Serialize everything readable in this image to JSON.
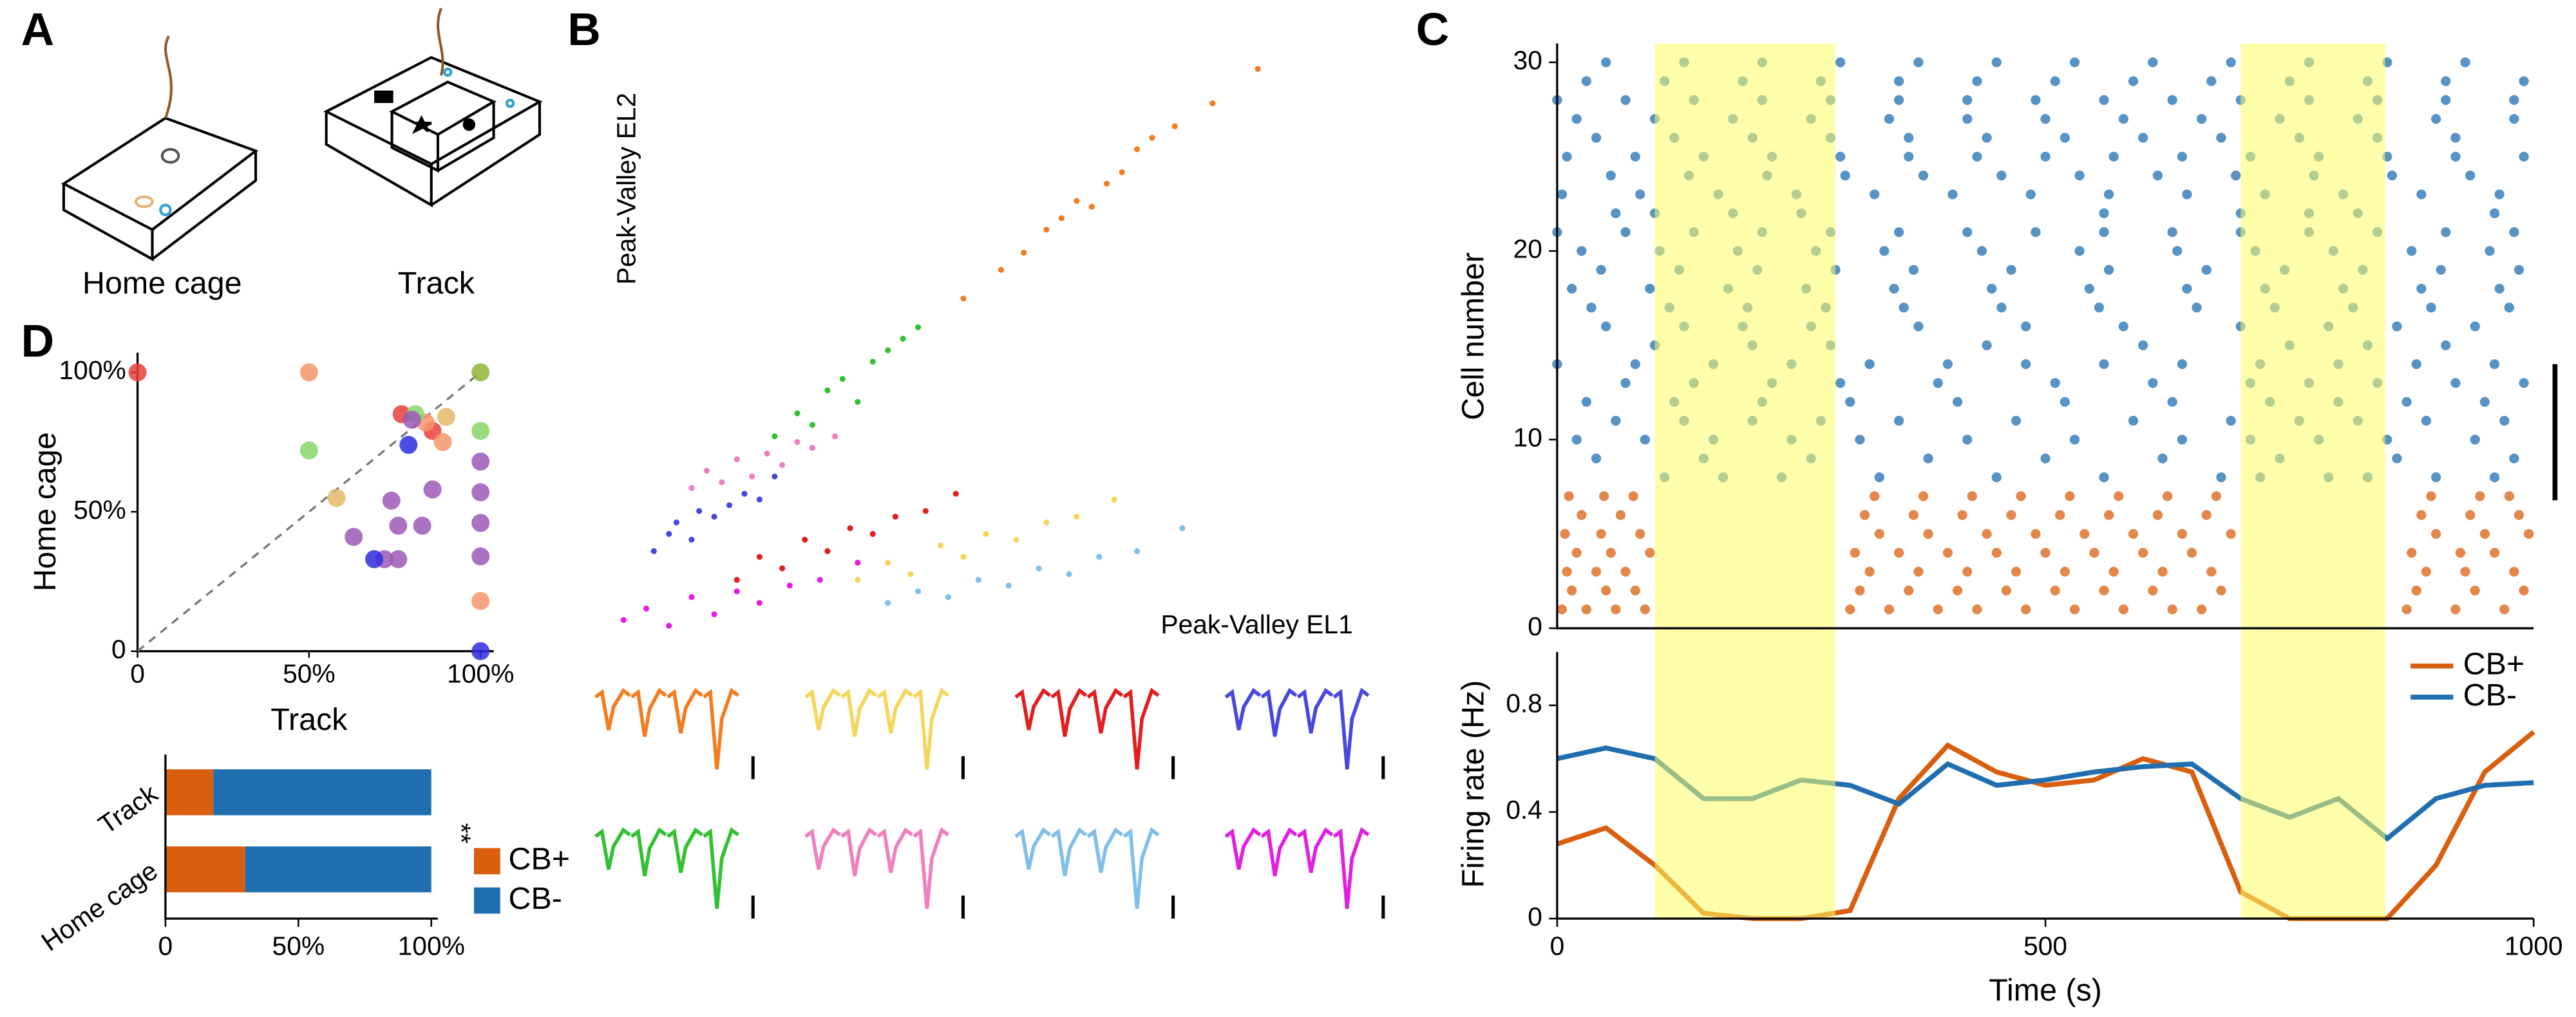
{
  "panel_labels": [
    "A",
    "B",
    "C",
    "D"
  ],
  "panel_a": {
    "labels": [
      "Home cage",
      "Track"
    ]
  },
  "chart_data": [
    {
      "type": "scatter",
      "xlabel": "Peak-Valley EL1",
      "ylabel": "Peak-Valley EL2",
      "xlim": [
        0,
        100
      ],
      "ylim": [
        0,
        100
      ],
      "series": [
        {
          "color": "#f47c20",
          "x": [
            47,
            52,
            55,
            58,
            60,
            62,
            64,
            66,
            68,
            70,
            72,
            75,
            80,
            86
          ],
          "values": [
            58,
            63,
            66,
            70,
            72,
            75,
            74,
            78,
            80,
            84,
            86,
            88,
            92,
            98
          ]
        },
        {
          "color": "#33c033",
          "x": [
            22,
            25,
            27,
            29,
            31,
            33,
            35,
            37,
            39,
            41
          ],
          "values": [
            34,
            38,
            36,
            42,
            44,
            40,
            47,
            49,
            51,
            53
          ]
        },
        {
          "color": "#f07fbf",
          "x": [
            11,
            13,
            15,
            17,
            19,
            21,
            23,
            25,
            27,
            30
          ],
          "values": [
            25,
            28,
            26,
            30,
            27,
            31,
            29,
            33,
            32,
            34
          ]
        },
        {
          "color": "#4848dd",
          "x": [
            6,
            8,
            9,
            11,
            12,
            14,
            16,
            18,
            20,
            22
          ],
          "values": [
            14,
            17,
            19,
            16,
            21,
            20,
            22,
            24,
            23,
            27
          ]
        },
        {
          "color": "#e02020",
          "x": [
            17,
            20,
            23,
            26,
            29,
            32,
            35,
            38,
            42,
            46
          ],
          "values": [
            9,
            13,
            11,
            16,
            14,
            18,
            17,
            20,
            21,
            24
          ]
        },
        {
          "color": "#f5d55a",
          "x": [
            33,
            37,
            40,
            44,
            47,
            50,
            54,
            58,
            62,
            67
          ],
          "values": [
            9,
            12,
            10,
            15,
            13,
            17,
            16,
            19,
            20,
            23
          ]
        },
        {
          "color": "#7fbfea",
          "x": [
            37,
            41,
            45,
            49,
            53,
            57,
            61,
            65,
            70,
            76
          ],
          "values": [
            5,
            7,
            6,
            9,
            8,
            11,
            10,
            13,
            14,
            18
          ]
        },
        {
          "color": "#e020e0",
          "x": [
            2,
            5,
            8,
            11,
            14,
            17,
            20,
            24,
            28,
            33
          ],
          "values": [
            2,
            4,
            1,
            6,
            3,
            7,
            5,
            8,
            9,
            12
          ]
        }
      ]
    },
    {
      "type": "raster",
      "ylabel": "Cell number",
      "xlim": [
        0,
        1000
      ],
      "ylim": [
        0,
        31
      ],
      "yticks": [
        0,
        10,
        20,
        30
      ],
      "highlight": [
        [
          100,
          285
        ],
        [
          700,
          848
        ]
      ],
      "highlight_color": "#ffff66",
      "series": [
        {
          "color": "#d95f0e",
          "cells": [
            1,
            2,
            3,
            4,
            5,
            6,
            7
          ],
          "spikes": [
            [
              5,
              30,
              60,
              90,
              300,
              340,
              390,
              430,
              480,
              530,
              580,
              630,
              660,
              870,
              920,
              970
            ],
            [
              15,
              50,
              80,
              310,
              360,
              410,
              460,
              510,
              560,
              610,
              680,
              880,
              940,
              990
            ],
            [
              10,
              40,
              70,
              320,
              370,
              420,
              470,
              520,
              570,
              620,
              670,
              890,
              930,
              980
            ],
            [
              20,
              55,
              95,
              305,
              350,
              400,
              450,
              500,
              550,
              600,
              650,
              875,
              925,
              960
            ],
            [
              8,
              45,
              85,
              330,
              380,
              440,
              490,
              540,
              590,
              640,
              690,
              900,
              950,
              995
            ],
            [
              25,
              65,
              315,
              365,
              415,
              465,
              515,
              565,
              615,
              665,
              885,
              935,
              985
            ],
            [
              12,
              48,
              78,
              325,
              375,
              425,
              475,
              525,
              575,
              625,
              675,
              895,
              945,
              975
            ]
          ]
        },
        {
          "color": "#1f6fb0",
          "cells": [
            8,
            9,
            10,
            11,
            12,
            13,
            14,
            15,
            16,
            17,
            18,
            19,
            20,
            21,
            22,
            23,
            24,
            25,
            26,
            27,
            28,
            29,
            30
          ],
          "spikes": [
            [
              110,
              170,
              230,
              330,
              450,
              560,
              680,
              720,
              790,
              830,
              900,
              960
            ],
            [
              40,
              150,
              260,
              380,
              500,
              620,
              740,
              860,
              980
            ],
            [
              20,
              90,
              160,
              240,
              310,
              420,
              530,
              640,
              710,
              780,
              850,
              940
            ],
            [
              60,
              130,
              200,
              270,
              350,
              470,
              590,
              690,
              760,
              820,
              890,
              970
            ],
            [
              30,
              120,
              210,
              300,
              410,
              520,
              630,
              730,
              800,
              870,
              950
            ],
            [
              70,
              140,
              220,
              290,
              390,
              510,
              610,
              710,
              770,
              840,
              920,
              990
            ],
            [
              0,
              80,
              160,
              240,
              320,
              400,
              480,
              560,
              640,
              720,
              800,
              880,
              960
            ],
            [
              100,
              200,
              280,
              440,
              600,
              750,
              830,
              910
            ],
            [
              50,
              130,
              190,
              260,
              370,
              480,
              580,
              700,
              790,
              860,
              940
            ],
            [
              35,
              115,
              195,
              275,
              355,
              455,
              555,
              655,
              735,
              815,
              895,
              975
            ],
            [
              15,
              95,
              175,
              255,
              345,
              445,
              545,
              645,
              725,
              805,
              885,
              965
            ],
            [
              45,
              125,
              205,
              285,
              365,
              465,
              565,
              665,
              745,
              825,
              905,
              985
            ],
            [
              25,
              105,
              185,
              265,
              335,
              435,
              535,
              635,
              715,
              795,
              875,
              955
            ],
            [
              0,
              70,
              140,
              210,
              280,
              350,
              420,
              490,
              560,
              630,
              700,
              770,
              840,
              910,
              980
            ],
            [
              60,
              100,
              180,
              250,
              560,
              700,
              770,
              820,
              960
            ],
            [
              5,
              85,
              165,
              245,
              325,
              405,
              485,
              565,
              645,
              725,
              805,
              885,
              965
            ],
            [
              55,
              135,
              215,
              295,
              375,
              455,
              535,
              615,
              695,
              775,
              855,
              935
            ],
            [
              10,
              80,
              150,
              220,
              290,
              360,
              430,
              500,
              570,
              640,
              710,
              780,
              850,
              920,
              990
            ],
            [
              40,
              120,
              200,
              280,
              360,
              440,
              520,
              600,
              680,
              760,
              840,
              920
            ],
            [
              20,
              100,
              180,
              260,
              340,
              420,
              500,
              580,
              660,
              740,
              820,
              900,
              980
            ],
            [
              0,
              70,
              140,
              210,
              280,
              350,
              420,
              490,
              560,
              630,
              700,
              770,
              840,
              910,
              980
            ],
            [
              30,
              110,
              190,
              270,
              350,
              430,
              510,
              590,
              670,
              750,
              830,
              910,
              990
            ],
            [
              50,
              130,
              210,
              290,
              370,
              450,
              530,
              610,
              690,
              770,
              850,
              930
            ]
          ]
        }
      ]
    },
    {
      "type": "line",
      "xlabel": "Time (s)",
      "ylabel": "Firing rate (Hz)",
      "x": [
        0,
        50,
        100,
        150,
        200,
        250,
        300,
        350,
        400,
        450,
        500,
        550,
        600,
        650,
        700,
        750,
        800,
        850,
        900,
        950,
        1000
      ],
      "xlim": [
        0,
        1000
      ],
      "xticks": [
        0,
        500,
        1000
      ],
      "ylim": [
        0,
        1
      ],
      "yticks": [
        0,
        0.4,
        0.8
      ],
      "highlight": [
        [
          100,
          285
        ],
        [
          700,
          848
        ]
      ],
      "highlight_color": "#ffff66",
      "legend": "upper right",
      "series": [
        {
          "name": "CB+",
          "color": "#d95f0e",
          "values": [
            0.28,
            0.34,
            0.2,
            0.02,
            0,
            0,
            0.03,
            0.45,
            0.65,
            0.55,
            0.5,
            0.52,
            0.6,
            0.55,
            0.1,
            0,
            0,
            0,
            0.2,
            0.55,
            0.7
          ]
        },
        {
          "name": "CB-",
          "color": "#1f6fb0",
          "values": [
            0.6,
            0.64,
            0.6,
            0.45,
            0.45,
            0.52,
            0.5,
            0.43,
            0.58,
            0.5,
            0.52,
            0.55,
            0.57,
            0.58,
            0.45,
            0.38,
            0.45,
            0.3,
            0.45,
            0.5,
            0.51
          ]
        }
      ]
    },
    {
      "type": "scatter",
      "xlabel": "Track",
      "ylabel": "Home cage",
      "xlim": [
        0,
        100
      ],
      "ylim": [
        0,
        100
      ],
      "xticks": [
        0,
        {
          "value": 50,
          "label": "50%"
        },
        {
          "value": 100,
          "label": "100%"
        }
      ],
      "yticks": [
        0,
        {
          "value": 50,
          "label": "50%"
        },
        {
          "value": 100,
          "label": "100%"
        }
      ],
      "series": [
        {
          "color": "#e8403c",
          "x": [
            0,
            77,
            86
          ],
          "values": [
            100,
            85,
            79
          ]
        },
        {
          "color": "#f4956a",
          "x": [
            50,
            84,
            89,
            100
          ],
          "values": [
            100,
            82,
            75,
            18
          ]
        },
        {
          "color": "#86d66a",
          "x": [
            50,
            81,
            100
          ],
          "values": [
            72,
            85,
            79
          ]
        },
        {
          "color": "#8fb43a",
          "x": [
            100
          ],
          "values": [
            100
          ]
        },
        {
          "color": "#e6b86a",
          "x": [
            58,
            90
          ],
          "values": [
            55,
            84
          ]
        },
        {
          "color": "#9b59b6",
          "x": [
            63,
            72,
            76,
            76,
            83,
            74,
            80,
            86,
            100,
            100,
            100,
            100
          ],
          "values": [
            41,
            33,
            33,
            45,
            45,
            54,
            83,
            58,
            68,
            57,
            46,
            34
          ]
        },
        {
          "color": "#2d2de0",
          "x": [
            69,
            79,
            100
          ],
          "values": [
            33,
            74,
            0
          ]
        }
      ]
    },
    {
      "type": "hbar_stacked",
      "categories": [
        "Track",
        "Home cage"
      ],
      "xlim": [
        0,
        100
      ],
      "xticks": [
        0,
        {
          "value": 50,
          "label": "50%"
        },
        {
          "value": 100,
          "label": "100%"
        }
      ],
      "annotation": "**",
      "legend": "right",
      "series": [
        {
          "name": "CB+",
          "color": "#d95f0e",
          "values": [
            18,
            30
          ]
        },
        {
          "name": "CB-",
          "color": "#1f6fb0",
          "values": [
            82,
            70
          ]
        }
      ]
    }
  ]
}
